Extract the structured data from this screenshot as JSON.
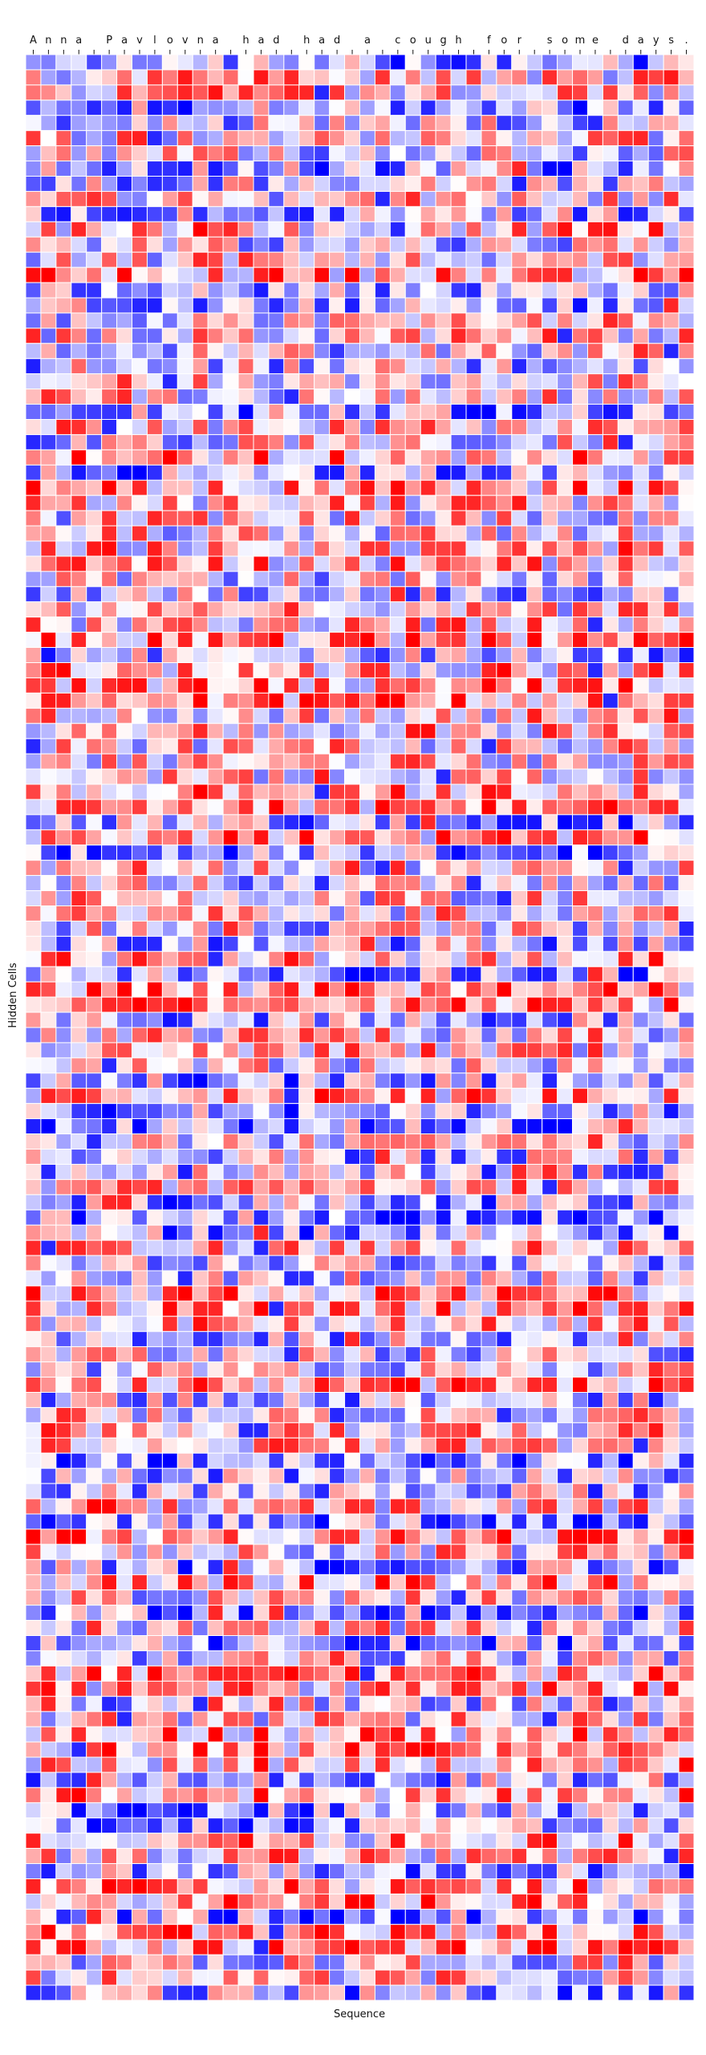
{
  "chart_data": {
    "type": "heatmap",
    "title": "",
    "xlabel": "Sequence",
    "ylabel": "Hidden Cells",
    "x_tick_position": "top",
    "x_ticks": [
      "A",
      "n",
      "n",
      "a",
      " ",
      "P",
      "a",
      "v",
      "l",
      "o",
      "v",
      "n",
      "a",
      " ",
      "h",
      "a",
      "d",
      " ",
      "h",
      "a",
      "d",
      " ",
      "a",
      " ",
      "c",
      "o",
      "u",
      "g",
      "h",
      " ",
      "f",
      "o",
      "r",
      " ",
      "s",
      "o",
      "m",
      "e",
      " ",
      "d",
      "a",
      "y",
      "s",
      "."
    ],
    "n_rows": 128,
    "colormap": [
      "#0000ff",
      "#ffffff",
      "#ff0000"
    ],
    "value_range": [
      -1,
      1
    ],
    "grid_color": "#ffffff",
    "values_note_only_in_script": ""
  }
}
